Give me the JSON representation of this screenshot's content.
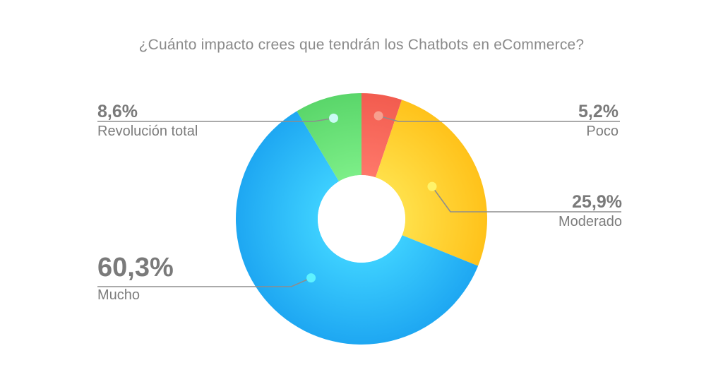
{
  "chart_data": {
    "type": "pie",
    "variant": "donut",
    "title": "¿Cuánto impacto crees que tendrán los Chatbots en eCommerce?",
    "categories": [
      "Poco",
      "Moderado",
      "Mucho",
      "Revolución total"
    ],
    "values": [
      5.2,
      25.9,
      60.3,
      8.6
    ],
    "value_labels": [
      "5,2%",
      "25,9%",
      "60,3%",
      "8,6%"
    ],
    "colors": [
      "#f25c4f",
      "#ffc21a",
      "#1ea7f2",
      "#5ad66a"
    ],
    "dot_colors": [
      "#f7a08f",
      "#fff36a",
      "#5ef2ff",
      "#c9fbf4"
    ]
  }
}
